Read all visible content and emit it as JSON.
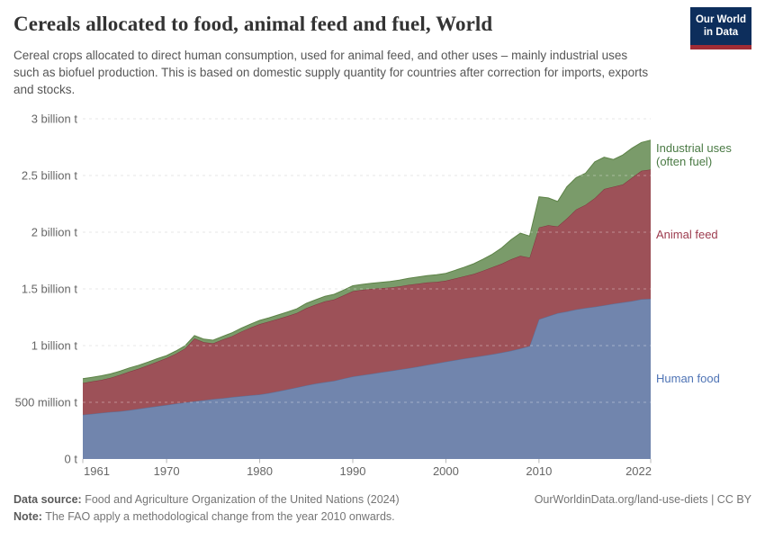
{
  "header": {
    "title": "Cereals allocated to food, animal feed and fuel, World",
    "subtitle": "Cereal crops allocated to direct human consumption, used for animal feed, and other uses – mainly industrial uses such as biofuel production. This is based on domestic supply quantity for countries after correction for imports, exports and stocks.",
    "logo": {
      "line1": "Our World",
      "line2": "in Data",
      "bg_color": "#0d2e5c",
      "stripe_color": "#a02c35"
    }
  },
  "chart_data": {
    "type": "area",
    "stacked": true,
    "title": "Cereals allocated to food, animal feed and fuel, World",
    "unit": "million tonnes",
    "grid": true,
    "legend_position": "right",
    "xlabel": "",
    "ylabel": "",
    "ylim": [
      0,
      3000
    ],
    "x": [
      1961,
      1962,
      1963,
      1964,
      1965,
      1966,
      1967,
      1968,
      1969,
      1970,
      1971,
      1972,
      1973,
      1974,
      1975,
      1976,
      1977,
      1978,
      1979,
      1980,
      1981,
      1982,
      1983,
      1984,
      1985,
      1986,
      1987,
      1988,
      1989,
      1990,
      1991,
      1992,
      1993,
      1994,
      1995,
      1996,
      1997,
      1998,
      1999,
      2000,
      2001,
      2002,
      2003,
      2004,
      2005,
      2006,
      2007,
      2008,
      2009,
      2010,
      2011,
      2012,
      2013,
      2014,
      2015,
      2016,
      2017,
      2018,
      2019,
      2020,
      2021,
      2022
    ],
    "x_ticks": [
      1961,
      1970,
      1980,
      1990,
      2000,
      2010,
      2022
    ],
    "y_ticks": [
      {
        "value": 0,
        "label": "0 t"
      },
      {
        "value": 500,
        "label": "500 million t"
      },
      {
        "value": 1000,
        "label": "1 billion t"
      },
      {
        "value": 1500,
        "label": "1.5 billion t"
      },
      {
        "value": 2000,
        "label": "2 billion t"
      },
      {
        "value": 2500,
        "label": "2.5 billion t"
      },
      {
        "value": 3000,
        "label": "3 billion t"
      }
    ],
    "series": [
      {
        "id": "human-food",
        "name": "Human food",
        "label_lines": [
          "Human food"
        ],
        "fill": "#7185ad",
        "stroke": "#5a7099",
        "label_color": "#4f74b5",
        "values": [
          390,
          398,
          406,
          414,
          421,
          431,
          443,
          454,
          465,
          476,
          488,
          498,
          508,
          518,
          528,
          536,
          545,
          554,
          561,
          568,
          581,
          597,
          614,
          631,
          649,
          664,
          678,
          690,
          709,
          727,
          739,
          751,
          764,
          776,
          789,
          801,
          814,
          829,
          844,
          858,
          872,
          886,
          898,
          911,
          924,
          939,
          955,
          974,
          996,
          1232,
          1259,
          1286,
          1301,
          1318,
          1331,
          1342,
          1355,
          1369,
          1381,
          1393,
          1409,
          1413
        ]
      },
      {
        "id": "animal-feed",
        "name": "Animal feed",
        "label_lines": [
          "Animal feed"
        ],
        "fill": "#9d5158",
        "stroke": "#82323e",
        "label_color": "#9c3b4e",
        "values": [
          280,
          286,
          292,
          302,
          321,
          340,
          354,
          372,
          393,
          414,
          440,
          477,
          555,
          512,
          492,
          516,
          537,
          568,
          597,
          622,
          631,
          639,
          647,
          656,
          681,
          697,
          712,
          716,
          733,
          753,
          752,
          749,
          742,
          736,
          733,
          735,
          732,
          727,
          718,
          714,
          720,
          726,
          734,
          750,
          767,
          783,
          806,
          817,
          780,
          810,
          802,
          765,
          820,
          883,
          910,
          959,
          1026,
          1032,
          1040,
          1088,
          1132,
          1139
        ]
      },
      {
        "id": "industrial-uses",
        "name": "Industrial uses (often fuel)",
        "label_lines": [
          "Industrial uses",
          "(often fuel)"
        ],
        "fill": "#7a9b6a",
        "stroke": "#5d8347",
        "label_color": "#4a7a44",
        "values": [
          38,
          37,
          36,
          35,
          33,
          32,
          30,
          29,
          27,
          22,
          24,
          25,
          26,
          27,
          28,
          29,
          30,
          31,
          31,
          32,
          33,
          35,
          36,
          38,
          42,
          43,
          45,
          46,
          47,
          48,
          49,
          50,
          51,
          53,
          55,
          57,
          59,
          61,
          63,
          65,
          72,
          80,
          90,
          102,
          115,
          140,
          172,
          200,
          190,
          270,
          241,
          220,
          280,
          280,
          280,
          320,
          280,
          240,
          260,
          260,
          250,
          260
        ]
      }
    ]
  },
  "footer": {
    "source_label": "Data source:",
    "source_text": " Food and Agriculture Organization of the United Nations (2024)",
    "note_label": "Note:",
    "note_text": " The FAO apply a methodological change from the year 2010 onwards.",
    "link": "OurWorldinData.org/land-use-diets | CC BY"
  }
}
